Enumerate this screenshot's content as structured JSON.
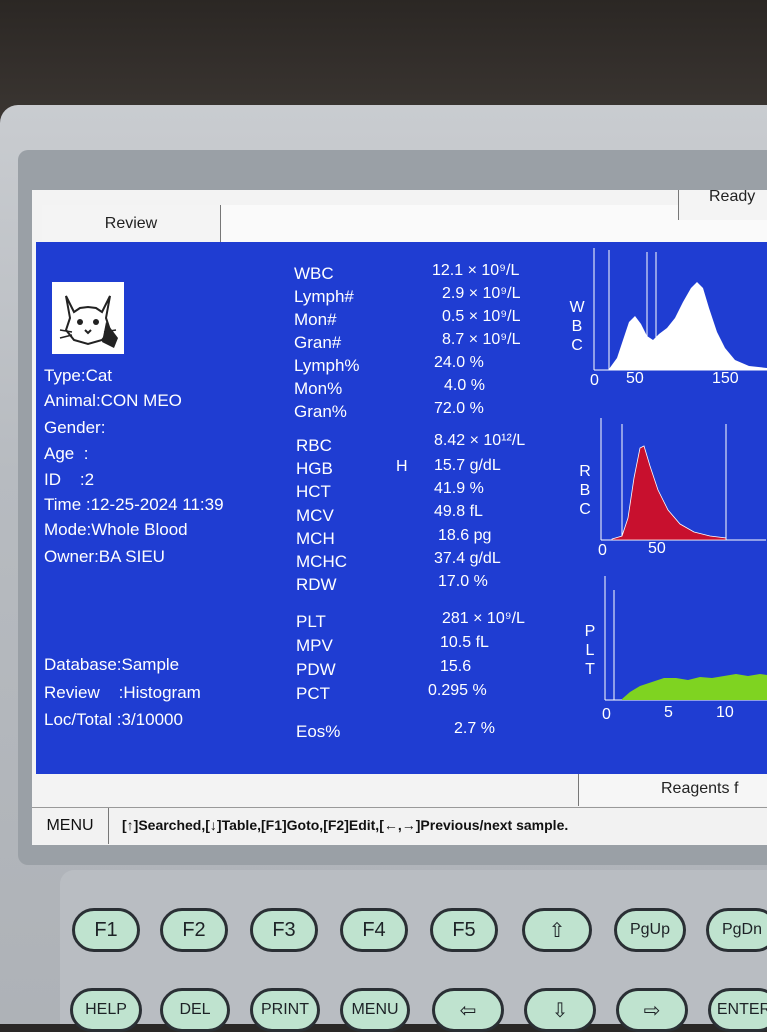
{
  "topbar": {
    "tab": "Review",
    "status": "Ready"
  },
  "patient": {
    "type": "Type:Cat",
    "animal": "Animal:CON MEO",
    "gender": "Gender:",
    "age": "Age  :",
    "id": "ID    :2",
    "time": "Time :12-25-2024 11:39",
    "mode": "Mode:Whole Blood",
    "owner": "Owner:BA SIEU",
    "database": "Database:Sample",
    "review": "Review    :Histogram",
    "loc_total": "Loc/Total :3/10000"
  },
  "wbc_group": [
    {
      "name": "WBC",
      "value": "12.1 × 10⁹/L"
    },
    {
      "name": "Lymph#",
      "value": "2.9 × 10⁹/L"
    },
    {
      "name": "Mon#",
      "value": "0.5 × 10⁹/L"
    },
    {
      "name": "Gran#",
      "value": "8.7 × 10⁹/L"
    },
    {
      "name": "Lymph%",
      "value": "24.0 %"
    },
    {
      "name": "Mon%",
      "value": "4.0 %"
    },
    {
      "name": "Gran%",
      "value": "72.0 %"
    }
  ],
  "rbc_group": [
    {
      "name": "RBC",
      "value": "8.42 × 10¹²/L",
      "flag": ""
    },
    {
      "name": "HGB",
      "value": "15.7 g/dL",
      "flag": "H"
    },
    {
      "name": "HCT",
      "value": "41.9 %",
      "flag": ""
    },
    {
      "name": "MCV",
      "value": "49.8 fL",
      "flag": ""
    },
    {
      "name": "MCH",
      "value": "18.6 pg",
      "flag": ""
    },
    {
      "name": "MCHC",
      "value": "37.4 g/dL",
      "flag": ""
    },
    {
      "name": "RDW",
      "value": "17.0 %",
      "flag": ""
    }
  ],
  "plt_group": [
    {
      "name": "PLT",
      "value": "281 × 10⁹/L"
    },
    {
      "name": "MPV",
      "value": "10.5 fL"
    },
    {
      "name": "PDW",
      "value": "15.6"
    },
    {
      "name": "PCT",
      "value": "0.295 %"
    }
  ],
  "eos": {
    "name": "Eos%",
    "value": "2.7 %"
  },
  "histograms": {
    "wbc": {
      "label": "WBC",
      "ticks": [
        "0",
        "50",
        "150"
      ],
      "color": "#ffffff"
    },
    "rbc": {
      "label": "RBC",
      "ticks": [
        "0",
        "50"
      ],
      "color": "#c8102e"
    },
    "plt": {
      "label": "PLT",
      "ticks": [
        "0",
        "5",
        "10"
      ],
      "color": "#7fd321"
    }
  },
  "bottom": {
    "reagents": "Reagents f",
    "menu": "MENU",
    "hint": "[↑]Searched,[↓]Table,[F1]Goto,[F2]Edit,[←,→]Previous/next sample."
  },
  "keys": {
    "row1": [
      "F1",
      "F2",
      "F3",
      "F4",
      "F5",
      "⇧",
      "PgUp",
      "PgDn"
    ],
    "row2": [
      "HELP",
      "DEL",
      "PRINT",
      "MENU",
      "⇦",
      "⇩",
      "⇨",
      "ENTER"
    ]
  }
}
